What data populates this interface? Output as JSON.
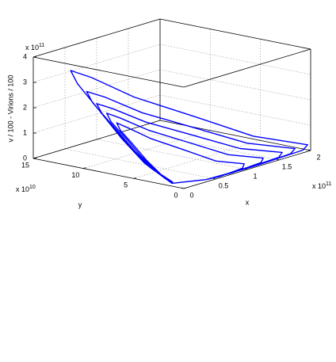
{
  "chart_data": {
    "type": "line3d",
    "x_label": "x",
    "y_label": "y",
    "z_label": "v / 100 - Virions / 100",
    "x_exponent": {
      "base": "x 10",
      "power": "11"
    },
    "y_exponent": {
      "base": "x 10",
      "power": "10"
    },
    "z_exponent": {
      "base": "x 10",
      "power": "11"
    },
    "xlim": [
      0,
      2
    ],
    "xticks": [
      0,
      0.5,
      1,
      1.5,
      2
    ],
    "ylim": [
      0,
      15
    ],
    "yticks": [
      0,
      5,
      10,
      15
    ],
    "zlim": [
      0,
      4
    ],
    "zticks": [
      0,
      1,
      2,
      3,
      4
    ],
    "grid": true,
    "series": [
      {
        "color": "#0000ff",
        "x": [
          0.05,
          0.4,
          1.2,
          1.9,
          2,
          1.5,
          1,
          0.5,
          0.2,
          0.05,
          0.03,
          0.03,
          0.02,
          0.02,
          0.03,
          0.05,
          0.4,
          1.08,
          1.71,
          1.8,
          1.35,
          0.9,
          0.45,
          0.18,
          0.05,
          0.03,
          0.03,
          0.02,
          0.02,
          0.03,
          0.05,
          0.4,
          0.96,
          1.52,
          1.6,
          1.2,
          0.8,
          0.4,
          0.16,
          0.05,
          0.03,
          0.03,
          0.02,
          0.02,
          0.03,
          0.05,
          0.4,
          0.78,
          1.24,
          1.3,
          0.98,
          0.65,
          0.33,
          0.13,
          0.05,
          0.03,
          0.03,
          0.02,
          0.02,
          0.03,
          0.05,
          0.4,
          0.6,
          0.95,
          1,
          0.75,
          0.5,
          0.25,
          0.1,
          0.05,
          0.03,
          0.03,
          0.02,
          0.02,
          0.03
        ],
        "y": [
          1.5,
          0.3,
          0.1,
          0.15,
          0.3,
          2.55,
          5.22,
          8.12,
          10.44,
          11.6,
          10.79,
          8.7,
          6.38,
          4.06,
          2.09,
          1.5,
          0.3,
          0.1,
          0.15,
          0.3,
          2.2,
          4.5,
          7,
          9,
          10,
          9.3,
          7.5,
          5.5,
          3.5,
          1.8,
          1.5,
          0.3,
          0.1,
          0.15,
          0.3,
          1.98,
          4.05,
          6.3,
          8.1,
          9,
          8.37,
          6.75,
          4.95,
          3.15,
          1.62,
          1.5,
          0.3,
          0.1,
          0.15,
          0.3,
          1.76,
          3.6,
          5.6,
          7.2,
          8,
          7.44,
          6,
          4.4,
          2.8,
          1.44,
          1.5,
          0.3,
          0.1,
          0.15,
          0.3,
          1.54,
          3.15,
          4.9,
          6.3,
          7,
          6.51,
          5.25,
          3.85,
          2.45,
          1.26
        ],
        "z": [
          0.05,
          0.03,
          0.03,
          0.08,
          0.2,
          0.74,
          1.67,
          2.59,
          3.4,
          3.7,
          3.26,
          2.41,
          1.48,
          0.67,
          0.22,
          0.05,
          0.03,
          0.03,
          0.08,
          0.2,
          0.6,
          1.35,
          2.1,
          2.76,
          3,
          2.64,
          1.95,
          1.2,
          0.54,
          0.18,
          0.05,
          0.03,
          0.03,
          0.08,
          0.2,
          0.52,
          1.17,
          1.82,
          2.39,
          2.6,
          2.29,
          1.69,
          1.04,
          0.47,
          0.16,
          0.05,
          0.03,
          0.03,
          0.08,
          0.2,
          0.46,
          1.04,
          1.61,
          2.12,
          2.3,
          2.02,
          1.5,
          0.92,
          0.41,
          0.14,
          0.05,
          0.03,
          0.03,
          0.08,
          0.2,
          0.4,
          0.9,
          1.4,
          1.84,
          2,
          1.76,
          1.3,
          0.8,
          0.36,
          0.12
        ]
      }
    ]
  }
}
